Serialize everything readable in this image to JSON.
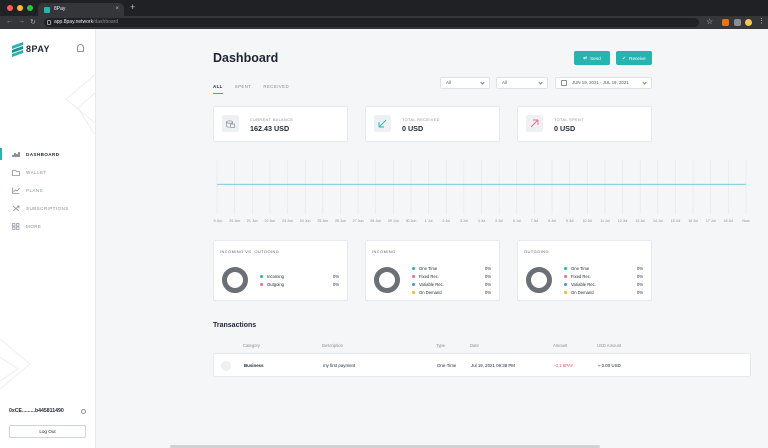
{
  "browser": {
    "tab_title": "8Pay",
    "url_host": "app.8pay.network",
    "url_path": "/dashboard",
    "nav": {
      "back": "←",
      "forward": "→",
      "reload": "↻",
      "new_tab": "+",
      "close_tab": "×"
    },
    "traffic_lights": [
      "#ff5f57",
      "#febc2e",
      "#28c840"
    ]
  },
  "sidebar": {
    "brand": "8PAY",
    "items": [
      {
        "label": "DASHBOARD",
        "icon": "bar-chart-icon",
        "active": true
      },
      {
        "label": "WALLET",
        "icon": "folder-icon",
        "active": false
      },
      {
        "label": "PLANS",
        "icon": "trend-icon",
        "active": false
      },
      {
        "label": "SUBSCRIPTIONS",
        "icon": "refresh-cross-icon",
        "active": false
      },
      {
        "label": "MORE",
        "icon": "grid-icon",
        "active": false
      }
    ],
    "wallet_address": "0xCE.........b445811490",
    "logout_label": "Log Out"
  },
  "header": {
    "title": "Dashboard",
    "send_label": "Send",
    "receive_label": "Receive"
  },
  "filters": {
    "tabs": [
      {
        "label": "ALL",
        "active": true
      },
      {
        "label": "SPENT",
        "active": false
      },
      {
        "label": "RECEIVED",
        "active": false
      }
    ],
    "select1": "All",
    "select2": "All",
    "date_range": "JUN 19, 2021 - JUL 19, 2021"
  },
  "stats": [
    {
      "label": "CURRENT BALANCE",
      "value": "162.43 USD",
      "icon": "coins-icon"
    },
    {
      "label": "TOTAL RECEIVED",
      "value": "0 USD",
      "icon": "received-arrow-icon"
    },
    {
      "label": "TOTAL SPENT",
      "value": "0 USD",
      "icon": "spent-arrow-icon"
    }
  ],
  "chart_data": {
    "type": "line",
    "x": [
      "19 Jun",
      "20 Jun",
      "21 Jun",
      "22 Jun",
      "23 Jun",
      "24 Jun",
      "25 Jun",
      "26 Jun",
      "27 Jun",
      "28 Jun",
      "29 Jun",
      "30 Jun",
      "1 Jul",
      "2 Jul",
      "3 Jul",
      "4 Jul",
      "5 Jul",
      "6 Jul",
      "7 Jul",
      "8 Jul",
      "9 Jul",
      "10 Jul",
      "11 Jul",
      "12 Jul",
      "13 Jul",
      "14 Jul",
      "15 Jul",
      "16 Jul",
      "17 Jul",
      "18 Jul",
      "Now"
    ],
    "series": [
      {
        "values": [
          0,
          0,
          0,
          0,
          0,
          0,
          0,
          0,
          0,
          0,
          0,
          0,
          0,
          0,
          0,
          0,
          0,
          0,
          0,
          0,
          0,
          0,
          0,
          0,
          0,
          0,
          0,
          0,
          0,
          0,
          0
        ]
      }
    ],
    "line_color": "#6cc7d6",
    "grid": true
  },
  "breakdowns": [
    {
      "title": "INCOMING VS. OUTGOING",
      "items": [
        {
          "label": "Incoming",
          "value": "0%",
          "color": "#2bb3b1"
        },
        {
          "label": "Outgoing",
          "value": "0%",
          "color": "#e86f86"
        }
      ]
    },
    {
      "title": "INCOMING",
      "items": [
        {
          "label": "One Time",
          "value": "0%",
          "color": "#2bb3b1"
        },
        {
          "label": "Fixed Rec.",
          "value": "0%",
          "color": "#e86f86"
        },
        {
          "label": "Variable Rec.",
          "value": "0%",
          "color": "#4a90d9"
        },
        {
          "label": "On Demand",
          "value": "0%",
          "color": "#f2b632"
        }
      ]
    },
    {
      "title": "OUTGOING",
      "items": [
        {
          "label": "One Time",
          "value": "0%",
          "color": "#2bb3b1"
        },
        {
          "label": "Fixed Rec.",
          "value": "0%",
          "color": "#e86f86"
        },
        {
          "label": "Variable Rec.",
          "value": "0%",
          "color": "#4a90d9"
        },
        {
          "label": "On Demand",
          "value": "0%",
          "color": "#f2b632"
        }
      ]
    }
  ],
  "transactions": {
    "title": "Transactions",
    "columns": [
      "Category",
      "Description",
      "Type",
      "Date",
      "Amount",
      "USD Amount"
    ],
    "rows": [
      {
        "category": "Business",
        "description": "my first payment",
        "type": "One-Time",
        "date": "Jul 19, 2021 09:38 PM",
        "amount": "-0.1 8PAY",
        "usd": "≈ 0.00 USD"
      }
    ]
  }
}
